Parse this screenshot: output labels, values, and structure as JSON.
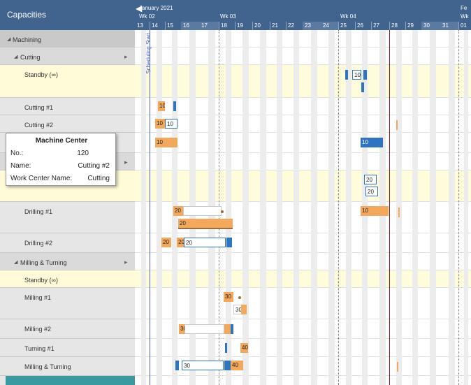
{
  "capacities_title": "Capacities",
  "header": {
    "month": "January 2021",
    "month_next": "Fe",
    "week_next": "Wk",
    "weeks": [
      "Wk 02",
      "Wk 03",
      "Wk 04"
    ],
    "days": [
      "13",
      "14",
      "15",
      "16",
      "17",
      "18",
      "19",
      "20",
      "21",
      "22",
      "23",
      "24",
      "25",
      "26",
      "27",
      "28",
      "29",
      "30",
      "31",
      "01"
    ]
  },
  "tree": [
    {
      "label": "Machining",
      "kind": "hdr"
    },
    {
      "label": "Cutting",
      "kind": "sub"
    },
    {
      "label": "Standby (∞)",
      "kind": "standby"
    },
    {
      "label": "Cutting #1",
      "kind": "res"
    },
    {
      "label": "Cutting #2",
      "kind": "res"
    },
    {
      "label": "",
      "kind": "res"
    },
    {
      "label": "",
      "kind": "sub"
    },
    {
      "label": "",
      "kind": "standby"
    },
    {
      "label": "Drilling #1",
      "kind": "res"
    },
    {
      "label": "Drilling #2",
      "kind": "res"
    },
    {
      "label": "Milling & Turning",
      "kind": "sub"
    },
    {
      "label": "Standby (∞)",
      "kind": "standby"
    },
    {
      "label": "Milling #1",
      "kind": "res"
    },
    {
      "label": "Milling #2",
      "kind": "res"
    },
    {
      "label": "Turning #1",
      "kind": "res"
    },
    {
      "label": "Milling & Turning",
      "kind": "res"
    }
  ],
  "scheduling_start_label": "Scheduling Start",
  "tooltip": {
    "title": "Machine Center",
    "no_label": "No.:",
    "no_value": "120",
    "name_label": "Name:",
    "name_value": "Cutting #2",
    "wc_label": "Work Center Name:",
    "wc_value": "Cutting"
  },
  "bar_labels": {
    "standby_cut": "10",
    "cut1": "10",
    "cut2": "10",
    "cut2b": "10",
    "r6_a": "10",
    "r6_b": "10",
    "drill_sb_a": "20",
    "drill_sb_b": "20",
    "drill1_a": "20",
    "drill1_b": "20",
    "drill1_c": "10",
    "drill2_a": "20",
    "drill2_b": "20",
    "drill2_c": "20",
    "mill1_a": "30",
    "mill1_b": "30",
    "mill2": "30",
    "turn1": "40",
    "mt_a": "30",
    "mt_b": "40"
  },
  "colors": {
    "header": "#41648f",
    "orange": "#f3a95d",
    "blue": "#2f74c0",
    "standby": "#fffcdc"
  }
}
